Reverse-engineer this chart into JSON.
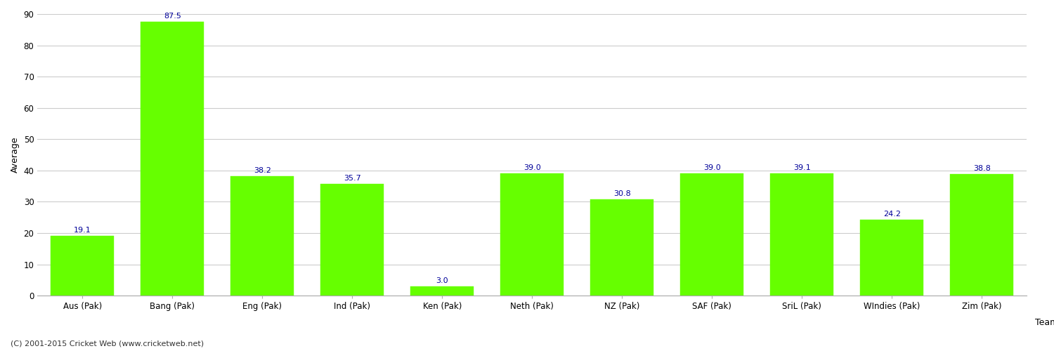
{
  "categories": [
    "Aus (Pak)",
    "Bang (Pak)",
    "Eng (Pak)",
    "Ind (Pak)",
    "Ken (Pak)",
    "Neth (Pak)",
    "NZ (Pak)",
    "SAF (Pak)",
    "SriL (Pak)",
    "WIndies (Pak)",
    "Zim (Pak)"
  ],
  "values": [
    19.1,
    87.5,
    38.2,
    35.7,
    3.0,
    39.0,
    30.8,
    39.0,
    39.1,
    24.2,
    38.8
  ],
  "bar_color": "#66ff00",
  "bar_edge_color": "#66ff00",
  "value_color": "#000099",
  "ylabel": "Average",
  "xlabel": "Team",
  "ylim": [
    0,
    90
  ],
  "yticks": [
    0,
    10,
    20,
    30,
    40,
    50,
    60,
    70,
    80,
    90
  ],
  "grid_color": "#cccccc",
  "background_color": "#ffffff",
  "footer_text": "(C) 2001-2015 Cricket Web (www.cricketweb.net)",
  "axis_label_fontsize": 9,
  "tick_fontsize": 8.5,
  "value_fontsize": 8,
  "footer_fontsize": 8
}
